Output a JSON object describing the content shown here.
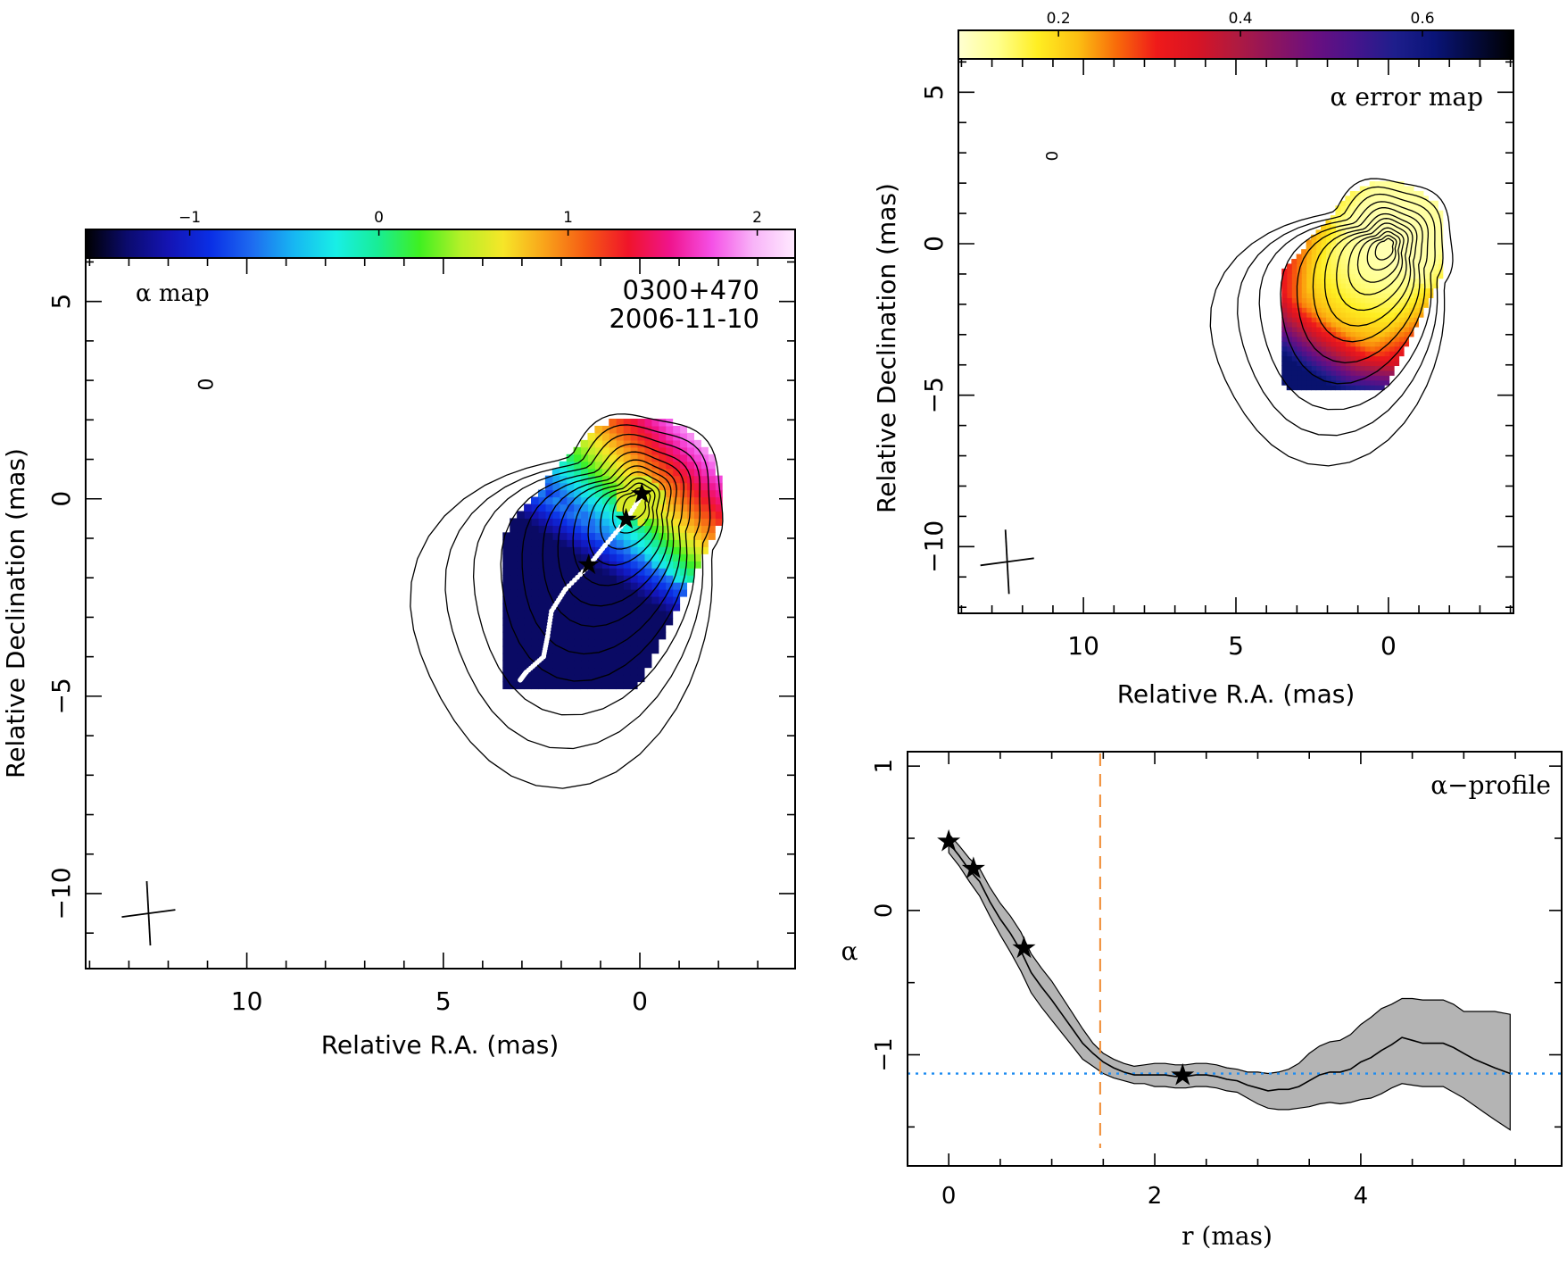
{
  "chart_data": [
    {
      "panel": "alpha-map",
      "type": "heatmap",
      "label_left": "α map",
      "source": "0300+470",
      "date": "2006-11-10",
      "xlabel": "Relative R.A. (mas)",
      "ylabel": "Relative Declination (mas)",
      "xlim": [
        14.1,
        -3.95
      ],
      "ylim": [
        -11.9,
        6.1
      ],
      "x_ticks": [
        "10",
        "5",
        "0"
      ],
      "y_ticks": [
        "5",
        "0",
        "−5",
        "−10"
      ],
      "x_tick_values": [
        10,
        5,
        0
      ],
      "y_tick_values": [
        5,
        0,
        -5,
        -10
      ],
      "colorbar": {
        "range": [
          -1.55,
          2.2
        ],
        "ticks": [
          "−1",
          "0",
          "1",
          "2"
        ],
        "tick_values": [
          -1,
          0,
          1,
          2
        ],
        "colors": [
          "#000000",
          "#0b0b6e",
          "#1414b4",
          "#0a2fe6",
          "#1e6cf0",
          "#17b7f2",
          "#18efe6",
          "#18ed96",
          "#3ff021",
          "#b6f028",
          "#f6e628",
          "#f9a31a",
          "#f55a14",
          "#f0142a",
          "#f0148c",
          "#f550e6",
          "#f8b4f8",
          "#ffeaff"
        ]
      },
      "small_label": "0",
      "small_label_pos": [
        11.0,
        2.9
      ],
      "beam_cross": {
        "ra": 12.5,
        "dec": -10.5
      },
      "ridge_markers": [
        {
          "ra": -0.05,
          "dec": 0.1
        },
        {
          "ra": 0.35,
          "dec": -0.55
        },
        {
          "ra": 1.3,
          "dec": -1.7
        }
      ]
    },
    {
      "panel": "alpha-error-map",
      "type": "heatmap",
      "label_right": "α error map",
      "xlabel": "Relative R.A. (mas)",
      "ylabel": "Relative Declination (mas)",
      "xlim": [
        14.1,
        -4.1
      ],
      "ylim": [
        -12.2,
        6.1
      ],
      "x_ticks": [
        "10",
        "5",
        "0"
      ],
      "y_ticks": [
        "5",
        "0",
        "−5",
        "−10"
      ],
      "x_tick_values": [
        10,
        5,
        0
      ],
      "y_tick_values": [
        5,
        0,
        -5,
        -10
      ],
      "colorbar": {
        "range": [
          0.09,
          0.7
        ],
        "ticks": [
          "0.2",
          "0.4",
          "0.6"
        ],
        "tick_values": [
          0.2,
          0.4,
          0.6
        ],
        "colors": [
          "#ffffd2",
          "#ffff8c",
          "#ffee22",
          "#fcc012",
          "#f86a0a",
          "#ef1a1a",
          "#d81424",
          "#b01a40",
          "#8c1460",
          "#6a0f80",
          "#46148c",
          "#1e1e8c",
          "#0a1478",
          "#040a3c",
          "#000000"
        ]
      },
      "small_label": "0",
      "small_label_pos": [
        11.0,
        2.9
      ],
      "beam_cross": {
        "ra": 12.5,
        "dec": -10.5
      }
    },
    {
      "panel": "alpha-profile",
      "type": "line",
      "label": "α−profile",
      "xlabel": "r (mas)",
      "ylabel": "α",
      "xlim": [
        -0.4,
        5.95
      ],
      "ylim": [
        -1.77,
        1.1
      ],
      "x_ticks": [
        "0",
        "2",
        "4"
      ],
      "y_ticks": [
        "1",
        "0",
        "−1"
      ],
      "x_tick_values": [
        0,
        2,
        4
      ],
      "y_tick_values": [
        1,
        0,
        -1
      ],
      "series": [
        {
          "x": [
            0,
            0.1,
            0.2,
            0.3,
            0.4,
            0.5,
            0.6,
            0.7,
            0.8,
            0.9,
            1.0,
            1.1,
            1.2,
            1.3,
            1.4,
            1.5,
            1.6,
            1.7,
            1.8,
            1.9,
            2.0,
            2.1,
            2.2,
            2.3,
            2.4,
            2.5,
            2.6,
            2.7,
            2.8,
            2.9,
            3.0,
            3.1,
            3.2,
            3.3,
            3.4,
            3.5,
            3.6,
            3.7,
            3.8,
            3.9,
            4.0,
            4.1,
            4.2,
            4.3,
            4.4,
            4.5,
            4.6,
            4.7,
            4.8,
            4.9,
            5.0,
            5.1,
            5.2,
            5.3,
            5.45
          ],
          "y": [
            0.47,
            0.38,
            0.28,
            0.2,
            0.06,
            -0.06,
            -0.16,
            -0.28,
            -0.43,
            -0.53,
            -0.62,
            -0.72,
            -0.82,
            -0.92,
            -0.99,
            -1.05,
            -1.09,
            -1.12,
            -1.14,
            -1.14,
            -1.14,
            -1.14,
            -1.15,
            -1.15,
            -1.14,
            -1.14,
            -1.15,
            -1.17,
            -1.18,
            -1.21,
            -1.23,
            -1.25,
            -1.24,
            -1.24,
            -1.22,
            -1.18,
            -1.14,
            -1.12,
            -1.12,
            -1.1,
            -1.05,
            -1.02,
            -0.97,
            -0.93,
            -0.88,
            -0.9,
            -0.92,
            -0.92,
            -0.92,
            -0.95,
            -0.99,
            -1.03,
            -1.06,
            -1.09,
            -1.13
          ],
          "upper": [
            0.53,
            0.45,
            0.36,
            0.29,
            0.16,
            0.05,
            -0.04,
            -0.15,
            -0.3,
            -0.4,
            -0.49,
            -0.6,
            -0.71,
            -0.82,
            -0.92,
            -0.99,
            -1.03,
            -1.06,
            -1.08,
            -1.07,
            -1.06,
            -1.06,
            -1.07,
            -1.07,
            -1.06,
            -1.06,
            -1.07,
            -1.09,
            -1.1,
            -1.12,
            -1.12,
            -1.13,
            -1.12,
            -1.1,
            -1.06,
            -0.99,
            -0.94,
            -0.91,
            -0.9,
            -0.86,
            -0.79,
            -0.74,
            -0.68,
            -0.65,
            -0.61,
            -0.61,
            -0.62,
            -0.62,
            -0.62,
            -0.65,
            -0.7,
            -0.7,
            -0.7,
            -0.7,
            -0.72
          ],
          "lower": [
            0.4,
            0.31,
            0.2,
            0.1,
            -0.04,
            -0.17,
            -0.29,
            -0.42,
            -0.57,
            -0.67,
            -0.76,
            -0.85,
            -0.94,
            -1.03,
            -1.08,
            -1.13,
            -1.16,
            -1.18,
            -1.2,
            -1.2,
            -1.22,
            -1.22,
            -1.23,
            -1.23,
            -1.22,
            -1.22,
            -1.23,
            -1.25,
            -1.26,
            -1.3,
            -1.34,
            -1.37,
            -1.38,
            -1.38,
            -1.37,
            -1.36,
            -1.34,
            -1.33,
            -1.34,
            -1.33,
            -1.31,
            -1.3,
            -1.27,
            -1.23,
            -1.2,
            -1.21,
            -1.22,
            -1.22,
            -1.22,
            -1.26,
            -1.3,
            -1.35,
            -1.4,
            -1.45,
            -1.52
          ]
        }
      ],
      "stars": [
        [
          0.0,
          0.47
        ],
        [
          0.24,
          0.28
        ],
        [
          0.73,
          -0.27
        ],
        [
          2.27,
          -1.15
        ]
      ],
      "vline": 1.47,
      "hline": -1.13,
      "colors": {
        "vline": "#f08a30",
        "hline": "#1e8cf0",
        "band": "#b4b4b4"
      }
    }
  ]
}
